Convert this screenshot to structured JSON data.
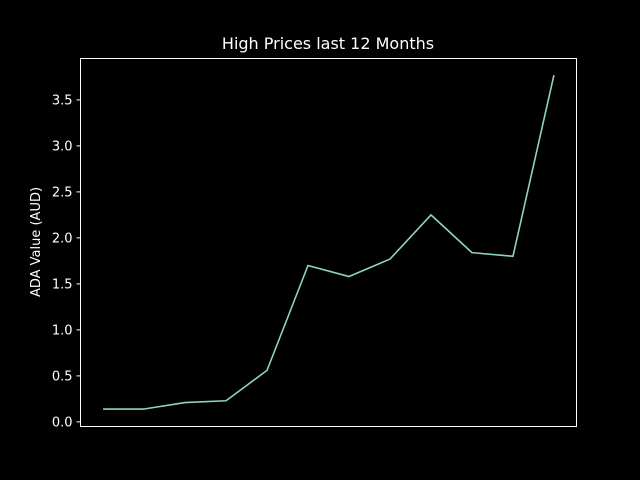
{
  "chart_data": {
    "type": "line",
    "title": "High Prices last 12 Months",
    "xlabel": "",
    "ylabel": "ADA Value (AUD)",
    "x": [
      1,
      2,
      3,
      4,
      5,
      6,
      7,
      8,
      9,
      10,
      11,
      12
    ],
    "series": [
      {
        "color": "#8dd3c7",
        "values": [
          0.14,
          0.14,
          0.21,
          0.23,
          0.56,
          1.7,
          1.58,
          1.77,
          2.25,
          1.84,
          1.8,
          3.77
        ]
      }
    ],
    "xlim": [
      0.45,
      12.55
    ],
    "ylim": [
      -0.05,
      3.95
    ],
    "yticks": [
      0.0,
      0.5,
      1.0,
      1.5,
      2.0,
      2.5,
      3.0,
      3.5
    ],
    "ytick_labels": [
      "0.0",
      "0.5",
      "1.0",
      "1.5",
      "2.0",
      "2.5",
      "3.0",
      "3.5"
    ],
    "grid": false,
    "legend": "none",
    "background": "#000000",
    "foreground": "#ffffff"
  }
}
